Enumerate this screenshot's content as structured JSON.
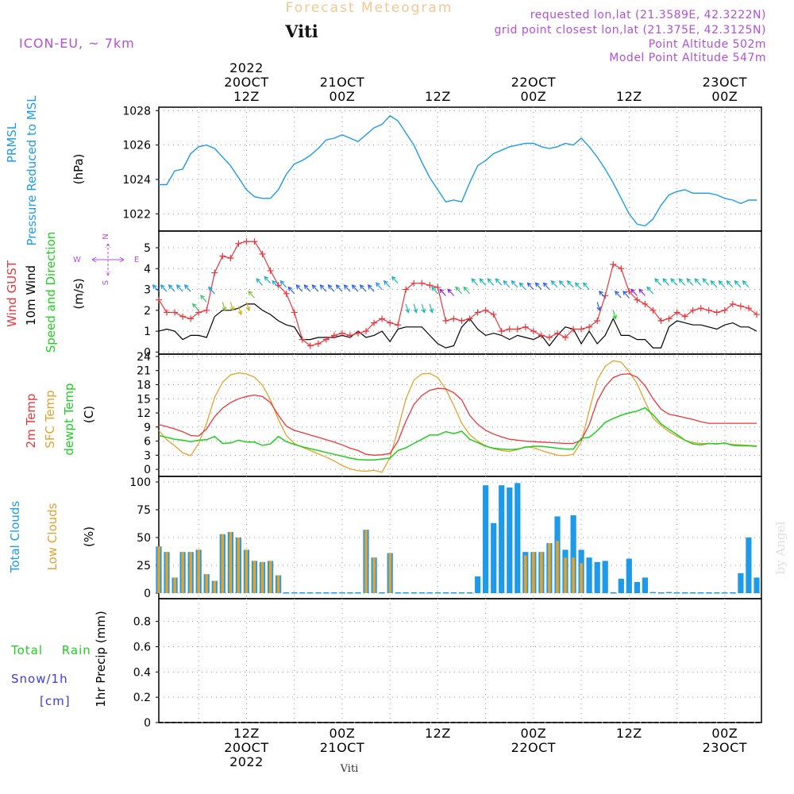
{
  "header": {
    "chart_title": "Forecast Meteogram",
    "location": "Viti",
    "model": "ICON-EU, ~ 7km",
    "requested": "requested lon,lat (21.3589E, 42.3222N)",
    "grid_point": "grid point closest lon,lat (21.375E, 42.3125N)",
    "point_altitude": "Point Altitude 502m",
    "model_altitude": "Model Point Altitude 547m",
    "watermark": "by Angel",
    "footer_location": "Viti"
  },
  "colors": {
    "pressure": "#1e9be8",
    "gust": "#e8363a",
    "wind": "#000000",
    "temp": "#e8363a",
    "sfc": "#e3a22e",
    "dewpt": "#1fcf1f",
    "total_clouds": "#1e9be8",
    "low_clouds": "#e3a22e",
    "rain": "#1fcf1f",
    "snow": "#3a3ae8",
    "meta": "#b050d8",
    "title": "#f0c890"
  },
  "chart_data": [
    {
      "type": "line",
      "panel": "pressure",
      "ylabel_lines": [
        "PRMSL",
        "Pressure Reduced to MSL"
      ],
      "unit": "(hPa)",
      "ylim": [
        1021,
        1028.2
      ],
      "yticks": [
        1022,
        1024,
        1026,
        1028
      ],
      "x_hours": [
        0,
        1,
        2,
        3,
        4,
        5,
        6,
        7,
        8,
        9,
        10,
        11,
        12,
        13,
        14,
        15,
        16,
        17,
        18,
        19,
        20,
        21,
        22,
        23,
        24,
        25,
        26,
        27,
        28,
        29,
        30,
        31,
        32,
        33,
        34,
        35,
        36,
        37,
        38,
        39,
        40,
        41,
        42,
        43,
        44,
        45,
        46,
        47,
        48,
        49,
        50,
        51,
        52,
        53,
        54,
        55,
        56,
        57,
        58,
        59,
        60,
        61,
        62,
        63,
        64,
        65,
        66,
        67,
        68,
        69,
        70,
        71,
        72,
        73,
        74,
        75,
        76
      ],
      "series": [
        {
          "values": [
            1023.7,
            1023.7,
            1024.5,
            1024.6,
            1025.5,
            1025.9,
            1026.0,
            1025.8,
            1025.3,
            1024.8,
            1024.1,
            1023.4,
            1023.0,
            1022.9,
            1022.9,
            1023.4,
            1024.3,
            1024.9,
            1025.1,
            1025.4,
            1025.8,
            1026.3,
            1026.4,
            1026.6,
            1026.4,
            1026.2,
            1026.6,
            1027.0,
            1027.2,
            1027.7,
            1027.4,
            1026.7,
            1026.0,
            1025.0,
            1024.1,
            1023.4,
            1022.7,
            1022.8,
            1022.7,
            1023.8,
            1024.8,
            1025.1,
            1025.5,
            1025.7,
            1025.9,
            1026.0,
            1026.1,
            1026.1,
            1025.9,
            1025.8,
            1025.9,
            1026.1,
            1026.0,
            1026.4,
            1025.9,
            1025.3,
            1024.6,
            1023.8,
            1022.9,
            1022.0,
            1021.4,
            1021.3,
            1021.7,
            1022.5,
            1023.1,
            1023.3,
            1023.4,
            1023.2,
            1023.2,
            1023.2,
            1023.1,
            1022.9,
            1022.8,
            1022.6,
            1022.8,
            1022.8
          ]
        }
      ]
    },
    {
      "type": "line",
      "panel": "wind",
      "ylabel_lines": [
        "Wind GUST",
        "10m Wind",
        "Speed and Direction"
      ],
      "unit": "(m/s)",
      "compass": {
        "n": "N",
        "s": "S",
        "e": "E",
        "w": "W"
      },
      "ylim": [
        -0.1,
        5.8
      ],
      "yticks": [
        0,
        1,
        2,
        3,
        4,
        5
      ],
      "series": [
        {
          "name": "Wind GUST",
          "values": [
            2.5,
            1.9,
            1.9,
            1.7,
            1.6,
            1.9,
            2.0,
            3.8,
            4.6,
            4.5,
            5.2,
            5.3,
            5.3,
            4.7,
            3.9,
            3.2,
            2.8,
            1.9,
            0.6,
            0.3,
            0.4,
            0.6,
            0.8,
            0.9,
            0.8,
            0.9,
            1.0,
            1.4,
            1.6,
            1.4,
            1.3,
            3.0,
            3.3,
            3.3,
            3.2,
            3.1,
            1.5,
            1.6,
            1.5,
            1.6,
            1.9,
            2.0,
            1.8,
            1.0,
            1.1,
            1.1,
            1.2,
            1.0,
            0.8,
            0.7,
            0.9,
            0.7,
            1.1,
            1.1,
            1.2,
            1.5,
            2.7,
            4.2,
            4.0,
            2.9,
            2.5,
            2.3,
            2.0,
            1.5,
            1.6,
            1.9,
            1.7,
            2.0,
            2.1,
            2.0,
            1.9,
            2.0,
            2.3,
            2.2,
            2.1,
            1.8
          ]
        },
        {
          "name": "10m Wind",
          "values": [
            1.0,
            1.1,
            1.0,
            0.6,
            0.8,
            0.8,
            0.7,
            1.7,
            2.0,
            2.0,
            2.1,
            2.3,
            2.3,
            2.0,
            1.8,
            1.5,
            1.3,
            1.2,
            0.6,
            0.6,
            0.7,
            0.7,
            0.7,
            0.8,
            0.7,
            1.0,
            0.7,
            0.8,
            1.0,
            0.5,
            1.1,
            1.2,
            1.2,
            1.2,
            0.8,
            0.4,
            0.2,
            0.3,
            1.2,
            1.6,
            1.1,
            0.8,
            0.9,
            0.8,
            0.6,
            0.8,
            0.7,
            0.6,
            0.8,
            0.3,
            0.8,
            1.2,
            1.1,
            0.4,
            1.0,
            0.4,
            0.8,
            1.6,
            0.8,
            0.8,
            0.6,
            0.6,
            0.2,
            0.2,
            1.2,
            1.5,
            1.4,
            1.3,
            1.3,
            1.2,
            1.1,
            1.3,
            1.4,
            1.2,
            1.2,
            1.0
          ]
        }
      ]
    },
    {
      "type": "line",
      "panel": "temperature",
      "ylabel_lines": [
        "2m Temp",
        "SFC Temp",
        "dewpt Temp"
      ],
      "unit": "(C)",
      "ylim": [
        -1.5,
        24.5
      ],
      "yticks": [
        0,
        3,
        6,
        9,
        12,
        15,
        18,
        21,
        24
      ],
      "series": [
        {
          "name": "2m Temp",
          "values": [
            9.5,
            9.1,
            8.6,
            8.0,
            7.2,
            7.1,
            8.6,
            11.2,
            13.0,
            14.2,
            15.0,
            15.5,
            15.8,
            15.5,
            14.2,
            11.5,
            9.2,
            8.3,
            7.8,
            7.3,
            6.8,
            6.3,
            5.8,
            5.2,
            4.5,
            4.0,
            3.2,
            3.0,
            3.1,
            3.4,
            6.0,
            10.2,
            13.8,
            15.7,
            16.8,
            17.2,
            17.1,
            16.3,
            14.8,
            11.5,
            9.6,
            8.3,
            7.5,
            6.9,
            6.4,
            6.2,
            6.0,
            5.9,
            5.8,
            5.7,
            5.6,
            5.5,
            5.5,
            6.2,
            9.5,
            14.5,
            17.6,
            19.5,
            20.2,
            20.3,
            19.6,
            17.8,
            15.0,
            12.8,
            11.7,
            11.4,
            11.0,
            10.6,
            10.1,
            9.8,
            9.8,
            9.8,
            9.8,
            9.8,
            9.8,
            9.8
          ]
        },
        {
          "name": "SFC Temp",
          "values": [
            8.3,
            6.3,
            5.0,
            3.5,
            2.9,
            5.5,
            9.8,
            15.3,
            18.5,
            20.1,
            20.5,
            20.3,
            19.6,
            17.9,
            14.8,
            10.6,
            7.2,
            5.5,
            4.7,
            4.0,
            3.3,
            2.6,
            1.8,
            0.8,
            0.1,
            -0.3,
            -0.4,
            -0.2,
            -0.6,
            2.5,
            8.5,
            15.0,
            19.0,
            20.3,
            20.4,
            19.5,
            17.1,
            13.6,
            9.8,
            7.4,
            6.0,
            5.0,
            4.4,
            4.0,
            3.8,
            4.2,
            4.8,
            4.6,
            4.0,
            3.5,
            3.0,
            2.9,
            3.2,
            5.8,
            12.5,
            19.0,
            21.9,
            23.1,
            22.8,
            20.8,
            18.2,
            14.4,
            10.9,
            9.3,
            8.0,
            7.0,
            6.2,
            5.7,
            5.5,
            5.5,
            5.5,
            5.5,
            5.3,
            5.2,
            5.1,
            5.0
          ]
        },
        {
          "name": "dewpt Temp",
          "values": [
            7.2,
            6.8,
            6.4,
            6.2,
            5.9,
            6.2,
            6.3,
            7.0,
            5.5,
            5.6,
            6.2,
            5.8,
            5.8,
            5.1,
            5.4,
            7.0,
            5.9,
            5.3,
            4.8,
            4.4,
            4.0,
            3.6,
            3.2,
            2.8,
            2.4,
            2.1,
            2.0,
            2.0,
            2.2,
            2.4,
            4.0,
            4.6,
            5.5,
            6.4,
            7.3,
            7.3,
            8.0,
            7.6,
            8.1,
            6.4,
            5.7,
            4.9,
            4.5,
            4.3,
            4.2,
            4.3,
            4.7,
            4.9,
            4.9,
            4.7,
            4.5,
            4.3,
            4.3,
            6.6,
            6.8,
            8.2,
            10.0,
            10.8,
            11.5,
            12.0,
            12.4,
            13.1,
            11.6,
            9.7,
            8.5,
            7.4,
            6.2,
            5.4,
            5.2,
            5.5,
            5.4,
            5.6,
            5.1,
            5.0,
            5.0,
            4.9
          ]
        }
      ]
    },
    {
      "type": "bar",
      "panel": "clouds",
      "ylabel_lines": [
        "Total Clouds",
        "Low Clouds"
      ],
      "unit": "(%)",
      "ylim": [
        -5,
        105
      ],
      "yticks": [
        0,
        25,
        50,
        75,
        100
      ],
      "series": [
        {
          "name": "Total Clouds",
          "values": [
            42,
            37,
            14,
            37,
            37,
            39,
            17,
            11,
            53,
            55,
            50,
            39,
            29,
            28,
            29,
            16,
            0,
            0,
            0,
            0,
            0,
            0,
            0,
            0,
            0,
            0,
            57,
            32,
            0,
            36,
            0,
            0,
            0,
            0,
            0,
            0,
            0,
            0,
            0,
            0,
            15,
            97,
            63,
            97,
            95,
            99,
            37,
            37,
            37,
            45,
            69,
            39,
            70,
            39,
            32,
            28,
            29,
            0,
            13,
            31,
            10,
            14,
            1,
            0,
            1,
            0,
            0,
            0,
            0,
            0,
            0,
            0,
            0,
            18,
            50,
            14
          ]
        },
        {
          "name": "Low Clouds",
          "values": [
            42,
            37,
            14,
            37,
            37,
            39,
            17,
            11,
            53,
            55,
            50,
            39,
            29,
            28,
            29,
            16,
            0,
            0,
            0,
            0,
            0,
            0,
            0,
            0,
            0,
            0,
            57,
            32,
            0,
            36,
            0,
            0,
            0,
            0,
            0,
            0,
            0,
            0,
            0,
            0,
            0,
            0,
            0,
            0,
            0,
            0,
            34,
            37,
            37,
            45,
            47,
            32,
            32,
            27,
            0,
            0,
            0,
            0,
            0,
            0,
            0,
            0,
            0,
            0,
            0,
            0,
            0,
            0,
            0,
            0,
            0,
            0,
            0,
            0,
            0,
            0
          ]
        }
      ]
    },
    {
      "type": "bar",
      "panel": "precip",
      "ylabel_lines": [
        "Total Rain",
        "Snow/1h",
        "[cm]"
      ],
      "unit_lines": [
        "1hr Precip (mm)"
      ],
      "ylim": [
        0,
        0.98
      ],
      "yticks": [
        0,
        0.2,
        0.4,
        0.6,
        0.8
      ],
      "series": [
        {
          "name": "Total Rain",
          "values": [
            0,
            0,
            0,
            0,
            0,
            0,
            0,
            0,
            0,
            0,
            0,
            0,
            0,
            0,
            0,
            0,
            0,
            0,
            0,
            0,
            0,
            0,
            0,
            0,
            0,
            0,
            0,
            0,
            0,
            0,
            0,
            0,
            0,
            0,
            0,
            0,
            0,
            0,
            0,
            0,
            0,
            0,
            0,
            0,
            0,
            0,
            0,
            0,
            0,
            0,
            0,
            0,
            0,
            0,
            0,
            0,
            0,
            0,
            0,
            0,
            0,
            0,
            0,
            0,
            0,
            0,
            0,
            0,
            0,
            0,
            0,
            0,
            0,
            0,
            0,
            0
          ]
        }
      ]
    }
  ],
  "time_axis": {
    "top": [
      {
        "hour": 11,
        "lines": [
          "2022",
          "20OCT",
          "12Z"
        ]
      },
      {
        "hour": 23,
        "lines": [
          "21OCT",
          "00Z"
        ]
      },
      {
        "hour": 35,
        "lines": [
          "12Z"
        ]
      },
      {
        "hour": 47,
        "lines": [
          "22OCT",
          "00Z"
        ]
      },
      {
        "hour": 59,
        "lines": [
          "12Z"
        ]
      },
      {
        "hour": 71,
        "lines": [
          "23OCT",
          "00Z"
        ]
      }
    ],
    "bottom": [
      {
        "hour": 11,
        "lines": [
          "12Z",
          "20OCT",
          "2022"
        ]
      },
      {
        "hour": 23,
        "lines": [
          "00Z",
          "21OCT"
        ]
      },
      {
        "hour": 35,
        "lines": [
          "12Z"
        ]
      },
      {
        "hour": 47,
        "lines": [
          "00Z",
          "22OCT"
        ]
      },
      {
        "hour": 59,
        "lines": [
          "12Z"
        ]
      },
      {
        "hour": 71,
        "lines": [
          "00Z",
          "23OCT"
        ]
      }
    ]
  }
}
